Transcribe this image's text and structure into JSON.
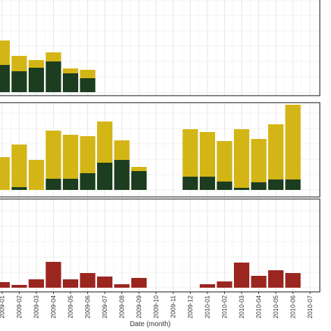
{
  "chart_data": [
    {
      "type": "bar",
      "stacked": true,
      "ylim": [
        0,
        134
      ],
      "grid": true,
      "series": [
        {
          "color": "#1c3d1f",
          "values": [
            39,
            30,
            35,
            44,
            27,
            20,
            null,
            null,
            null,
            null,
            null,
            null,
            null,
            null,
            null,
            null,
            null,
            null,
            null
          ]
        },
        {
          "color": "#d4b516",
          "values": [
            35,
            22,
            11,
            13,
            7,
            12,
            null,
            null,
            null,
            null,
            null,
            null,
            null,
            null,
            null,
            null,
            null,
            null,
            null
          ]
        }
      ]
    },
    {
      "type": "bar",
      "stacked": true,
      "ylim": [
        0,
        125
      ],
      "grid": true,
      "series": [
        {
          "color": "#1c3d1f",
          "values": [
            0,
            4,
            0,
            16,
            16,
            24,
            39,
            43,
            27,
            null,
            null,
            19,
            19,
            12,
            3,
            11,
            15,
            15,
            null
          ]
        },
        {
          "color": "#d4b516",
          "values": [
            47,
            61,
            43,
            69,
            63,
            53,
            59,
            28,
            6,
            null,
            null,
            68,
            64,
            58,
            84,
            62,
            79,
            107,
            null
          ]
        }
      ]
    },
    {
      "type": "bar",
      "ylim": [
        0,
        127
      ],
      "grid": true,
      "xlabel": "Date (month)",
      "categories": [
        "2009-01",
        "2009-02",
        "2009-03",
        "2009-04",
        "2009-05",
        "2009-06",
        "2009-07",
        "2009-08",
        "2009-09",
        "2009-10",
        "2009-11",
        "2009-12",
        "2010-01",
        "2010-02",
        "2010-03",
        "2010-04",
        "2010-05",
        "2010-06",
        "2010-07"
      ],
      "series": [
        {
          "color": "#9b2620",
          "values": [
            8,
            4,
            12,
            37,
            12,
            21,
            16,
            5,
            14,
            null,
            null,
            null,
            5,
            9,
            36,
            17,
            25,
            21,
            null
          ]
        }
      ]
    }
  ]
}
